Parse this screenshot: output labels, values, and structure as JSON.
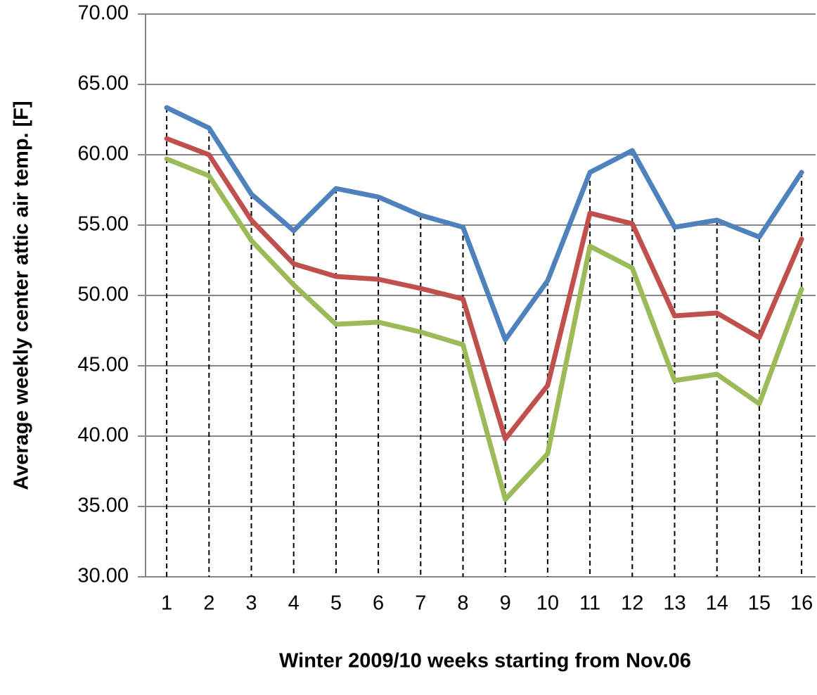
{
  "chart_data": {
    "type": "line",
    "xlabel": "Winter 2009/10 weeks starting from Nov.06",
    "ylabel": "Average weekly center  attic air temp. [F]",
    "categories": [
      "1",
      "2",
      "3",
      "4",
      "5",
      "6",
      "7",
      "8",
      "9",
      "10",
      "11",
      "12",
      "13",
      "14",
      "15",
      "16"
    ],
    "series": [
      {
        "color": "#4f81bd",
        "values": [
          63.35,
          61.9,
          57.2,
          54.6,
          57.6,
          57.0,
          55.7,
          54.85,
          46.85,
          51.05,
          58.75,
          60.3,
          54.85,
          55.35,
          54.15,
          58.75
        ]
      },
      {
        "color": "#c0504d",
        "values": [
          61.15,
          60.0,
          55.35,
          52.25,
          51.35,
          51.15,
          50.5,
          49.75,
          39.8,
          43.6,
          55.85,
          55.1,
          48.55,
          48.75,
          47.0,
          54.0
        ]
      },
      {
        "color": "#9bbb59",
        "values": [
          59.7,
          58.5,
          53.9,
          50.75,
          47.95,
          48.1,
          47.4,
          46.5,
          35.5,
          38.75,
          53.5,
          51.95,
          43.95,
          44.4,
          42.3,
          50.45
        ]
      }
    ],
    "ylim": [
      30,
      70
    ],
    "yticks": [
      {
        "value": 30,
        "label": "30.00"
      },
      {
        "value": 35,
        "label": "35.00"
      },
      {
        "value": 40,
        "label": "40.00"
      },
      {
        "value": 45,
        "label": "45.00"
      },
      {
        "value": 50,
        "label": "50.00"
      },
      {
        "value": 55,
        "label": "55.00"
      },
      {
        "value": 60,
        "label": "60.00"
      },
      {
        "value": 65,
        "label": "65.00"
      },
      {
        "value": 70,
        "label": "70.00"
      }
    ],
    "grid": true,
    "drop_lines": true
  }
}
